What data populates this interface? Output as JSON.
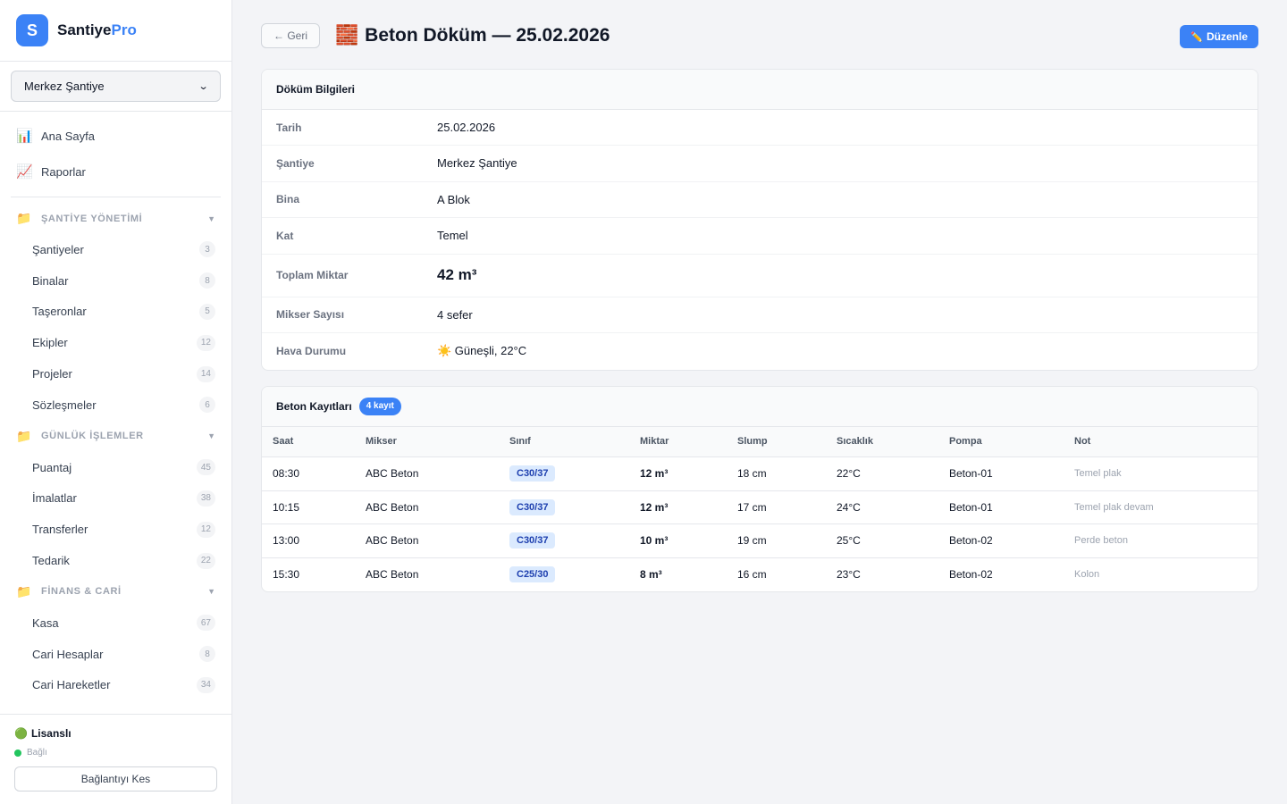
{
  "brand": {
    "logo_letter": "S",
    "name_main": "Santiye",
    "name_accent": "Pro",
    "accent_color": "#3b82f6"
  },
  "site_selector": {
    "value": "Merkez Şantiye"
  },
  "main_nav": [
    {
      "label": "Ana Sayfa",
      "icon": "bar-chart-icon"
    },
    {
      "label": "Raporlar",
      "icon": "line-chart-icon"
    }
  ],
  "sections": [
    {
      "title": "ŞANTİYE YÖNETİMİ",
      "items": [
        {
          "label": "Şantiyeler",
          "count": "3"
        },
        {
          "label": "Binalar",
          "count": "8"
        },
        {
          "label": "Taşeronlar",
          "count": "5"
        },
        {
          "label": "Ekipler",
          "count": "12"
        },
        {
          "label": "Projeler",
          "count": "14"
        },
        {
          "label": "Sözleşmeler",
          "count": "6"
        }
      ]
    },
    {
      "title": "GÜNLÜK İŞLEMLER",
      "items": [
        {
          "label": "Puantaj",
          "count": "45"
        },
        {
          "label": "İmalatlar",
          "count": "38"
        },
        {
          "label": "Transferler",
          "count": "12"
        },
        {
          "label": "Tedarik",
          "count": "22"
        }
      ]
    },
    {
      "title": "FİNANS & CARİ",
      "items": [
        {
          "label": "Kasa",
          "count": "67"
        },
        {
          "label": "Cari Hesaplar",
          "count": "8"
        },
        {
          "label": "Cari Hareketler",
          "count": "34"
        }
      ]
    }
  ],
  "footer": {
    "license": "Lisanslı",
    "status": "Bağlı",
    "disconnect_label": "Bağlantıyı Kes",
    "status_color": "#22c55e"
  },
  "header": {
    "back_label": "← Geri",
    "title": "Beton Döküm — 25.02.2026",
    "edit_label": "Düzenle"
  },
  "info_card": {
    "title": "Döküm Bilgileri",
    "rows": [
      {
        "label": "Tarih",
        "value": "25.02.2026"
      },
      {
        "label": "Şantiye",
        "value": "Merkez Şantiye"
      },
      {
        "label": "Bina",
        "value": "A Blok"
      },
      {
        "label": "Kat",
        "value": "Temel"
      },
      {
        "label": "Toplam Miktar",
        "value": "42 m³"
      },
      {
        "label": "Mikser Sayısı",
        "value": "4 sefer"
      },
      {
        "label": "Hava Durumu",
        "value": "☀️ Güneşli, 22°C"
      }
    ]
  },
  "records_card": {
    "title": "Beton Kayıtları",
    "count_badge": "4 kayıt",
    "columns": [
      "Saat",
      "Mikser",
      "Sınıf",
      "Miktar",
      "Slump",
      "Sıcaklık",
      "Pompa",
      "Not"
    ],
    "rows": [
      [
        "08:30",
        "ABC Beton",
        "C30/37",
        "12 m³",
        "18 cm",
        "22°C",
        "Beton-01",
        "Temel plak"
      ],
      [
        "10:15",
        "ABC Beton",
        "C30/37",
        "12 m³",
        "17 cm",
        "24°C",
        "Beton-01",
        "Temel plak devam"
      ],
      [
        "13:00",
        "ABC Beton",
        "C30/37",
        "10 m³",
        "19 cm",
        "25°C",
        "Beton-02",
        "Perde beton"
      ],
      [
        "15:30",
        "ABC Beton",
        "C25/30",
        "8 m³",
        "16 cm",
        "23°C",
        "Beton-02",
        "Kolon"
      ]
    ]
  }
}
